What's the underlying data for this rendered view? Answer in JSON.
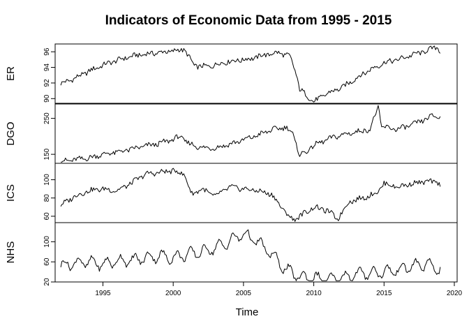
{
  "chart_data": {
    "type": "line",
    "title": "Indicators of Economic Data from 1995 - 2015",
    "xlabel": "Time",
    "xlim": [
      1991.6,
      2020.2
    ],
    "x_ticks": [
      1995,
      2000,
      2005,
      2010,
      2015,
      2020
    ],
    "x_tick_labels": [
      "1995",
      "2000",
      "2005",
      "2010",
      "2015",
      "2020"
    ],
    "frequency": "monthly",
    "x_start": 1992.0,
    "x_end": 2019.0,
    "grid": false,
    "legend": "none",
    "line_color": "#000000",
    "panels": [
      {
        "name": "ER",
        "ylim": [
          89.4,
          97.0
        ],
        "y_ticks": [
          90,
          92,
          94,
          96
        ],
        "y_tick_labels": [
          "90",
          "92",
          "94",
          "96"
        ],
        "x": [
          1992.0,
          1993.0,
          1994.0,
          1995.0,
          1996.0,
          1997.0,
          1998.0,
          1999.0,
          2000.0,
          2000.8,
          2001.5,
          2002.5,
          2003.5,
          2004.5,
          2005.5,
          2006.5,
          2007.5,
          2008.3,
          2008.7,
          2009.0,
          2009.5,
          2010.0,
          2011.0,
          2012.0,
          2013.0,
          2014.0,
          2015.0,
          2016.0,
          2017.0,
          2018.0,
          2018.8,
          2019.0
        ],
        "values": [
          91.9,
          92.6,
          93.5,
          94.3,
          94.9,
          95.4,
          95.7,
          95.9,
          96.1,
          96.3,
          94.2,
          94.1,
          94.6,
          94.9,
          95.1,
          95.6,
          95.9,
          95.4,
          93.5,
          91.2,
          90.4,
          89.6,
          90.7,
          91.4,
          92.6,
          93.7,
          94.6,
          95.0,
          95.6,
          96.1,
          96.7,
          95.9
        ]
      },
      {
        "name": "DGO",
        "ylim": [
          125,
          290
        ],
        "y_ticks": [
          150,
          250
        ],
        "y_tick_labels": [
          "150",
          "250"
        ],
        "x": [
          1992.0,
          1993.0,
          1994.0,
          1995.0,
          1996.0,
          1997.0,
          1998.0,
          1999.0,
          2000.0,
          2000.5,
          2001.0,
          2002.0,
          2003.0,
          2004.0,
          2005.0,
          2006.0,
          2007.0,
          2008.0,
          2008.5,
          2009.0,
          2009.5,
          2010.0,
          2011.0,
          2012.0,
          2013.0,
          2014.0,
          2014.6,
          2014.8,
          2015.0,
          2016.0,
          2017.0,
          2018.0,
          2018.5,
          2019.0
        ],
        "values": [
          130,
          135,
          140,
          150,
          156,
          164,
          173,
          180,
          192,
          200,
          182,
          168,
          168,
          178,
          190,
          203,
          218,
          226,
          208,
          148,
          158,
          175,
          192,
          204,
          212,
          220,
          283,
          228,
          225,
          220,
          232,
          248,
          258,
          252
        ]
      },
      {
        "name": "ICS",
        "ylim": [
          53,
          118
        ],
        "y_ticks": [
          60,
          80,
          100
        ],
        "y_tick_labels": [
          "60",
          "80",
          "100"
        ],
        "x": [
          1992.0,
          1993.0,
          1994.0,
          1995.0,
          1996.0,
          1997.0,
          1998.0,
          1999.0,
          2000.0,
          2000.8,
          2001.3,
          2002.0,
          2003.0,
          2004.0,
          2005.0,
          2006.0,
          2007.0,
          2008.0,
          2008.5,
          2009.0,
          2010.0,
          2011.0,
          2011.7,
          2012.5,
          2013.5,
          2014.5,
          2015.0,
          2016.0,
          2017.0,
          2018.0,
          2018.9,
          2019.0
        ],
        "values": [
          72,
          82,
          88,
          90,
          88,
          96,
          106,
          108,
          110,
          106,
          84,
          90,
          82,
          92,
          90,
          88,
          84,
          64,
          56,
          60,
          70,
          66,
          57,
          76,
          80,
          86,
          96,
          92,
          96,
          98,
          97,
          91
        ]
      },
      {
        "name": "NHS",
        "ylim": [
          20,
          138
        ],
        "y_ticks": [
          20,
          60,
          100
        ],
        "y_tick_labels": [
          "20",
          "60",
          "100"
        ],
        "x": [
          1992.0,
          1993.0,
          1994.0,
          1995.0,
          1996.0,
          1997.0,
          1998.0,
          1999.0,
          2000.0,
          2001.0,
          2002.0,
          2003.0,
          2004.0,
          2004.5,
          2005.0,
          2005.5,
          2006.0,
          2007.0,
          2008.0,
          2009.0,
          2010.0,
          2011.0,
          2012.0,
          2013.0,
          2014.0,
          2015.0,
          2016.0,
          2017.0,
          2018.0,
          2019.0
        ],
        "values": [
          52,
          58,
          60,
          55,
          62,
          63,
          68,
          72,
          68,
          75,
          80,
          88,
          100,
          110,
          115,
          108,
          100,
          75,
          45,
          30,
          28,
          24,
          28,
          36,
          38,
          40,
          44,
          52,
          55,
          45
        ]
      }
    ]
  }
}
